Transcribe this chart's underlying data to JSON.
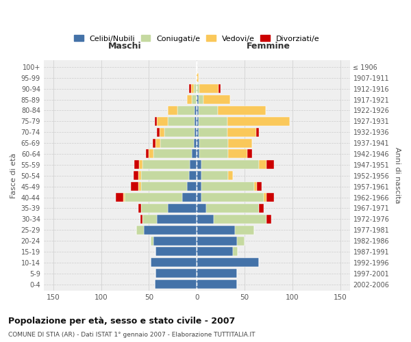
{
  "age_groups": [
    "0-4",
    "5-9",
    "10-14",
    "15-19",
    "20-24",
    "25-29",
    "30-34",
    "35-39",
    "40-44",
    "45-49",
    "50-54",
    "55-59",
    "60-64",
    "65-69",
    "70-74",
    "75-79",
    "80-84",
    "85-89",
    "90-94",
    "95-99",
    "100+"
  ],
  "birth_years": [
    "2002-2006",
    "1997-2001",
    "1992-1996",
    "1987-1991",
    "1982-1986",
    "1977-1981",
    "1972-1976",
    "1967-1971",
    "1962-1966",
    "1957-1961",
    "1952-1956",
    "1947-1951",
    "1942-1946",
    "1937-1941",
    "1932-1936",
    "1927-1931",
    "1922-1926",
    "1917-1921",
    "1912-1916",
    "1907-1911",
    "≤ 1906"
  ],
  "male": {
    "celibi": [
      44,
      43,
      48,
      43,
      45,
      55,
      42,
      30,
      15,
      10,
      8,
      7,
      5,
      3,
      2,
      2,
      2,
      0,
      0,
      0,
      0
    ],
    "coniugati": [
      0,
      0,
      0,
      0,
      3,
      8,
      15,
      28,
      60,
      48,
      50,
      50,
      40,
      35,
      32,
      28,
      18,
      5,
      3,
      0,
      0
    ],
    "vedovi": [
      0,
      0,
      0,
      0,
      0,
      0,
      0,
      0,
      2,
      3,
      3,
      3,
      5,
      5,
      5,
      12,
      10,
      5,
      3,
      0,
      0
    ],
    "divorziati": [
      0,
      0,
      0,
      0,
      0,
      0,
      2,
      3,
      8,
      8,
      5,
      5,
      3,
      3,
      3,
      2,
      0,
      0,
      2,
      0,
      0
    ]
  },
  "female": {
    "nubili": [
      42,
      42,
      65,
      38,
      42,
      40,
      18,
      10,
      5,
      5,
      5,
      5,
      3,
      3,
      2,
      2,
      2,
      2,
      0,
      0,
      0
    ],
    "coniugate": [
      0,
      0,
      0,
      5,
      8,
      20,
      55,
      55,
      65,
      55,
      28,
      60,
      30,
      30,
      30,
      30,
      20,
      5,
      3,
      0,
      0
    ],
    "vedove": [
      0,
      0,
      0,
      0,
      0,
      0,
      0,
      0,
      3,
      3,
      5,
      8,
      20,
      25,
      30,
      65,
      50,
      28,
      20,
      2,
      0
    ],
    "divorziate": [
      0,
      0,
      0,
      0,
      0,
      0,
      5,
      5,
      8,
      5,
      0,
      8,
      5,
      0,
      3,
      0,
      0,
      0,
      2,
      0,
      0
    ]
  },
  "colors": {
    "celibi": "#4472a8",
    "coniugati": "#c5d9a0",
    "vedovi": "#fac85a",
    "divorziati": "#cc0000"
  },
  "title": "Popolazione per età, sesso e stato civile - 2007",
  "subtitle": "COMUNE DI STIA (AR) - Dati ISTAT 1° gennaio 2007 - Elaborazione TUTTITALIA.IT",
  "xlabel_left": "Maschi",
  "xlabel_right": "Femmine",
  "ylabel_left": "Fasce di età",
  "ylabel_right": "Anni di nascita",
  "xlim": 160,
  "bg_color": "#ffffff",
  "plot_bg": "#efefef",
  "grid_color": "#cccccc",
  "legend_labels": [
    "Celibi/Nubili",
    "Coniugati/e",
    "Vedovi/e",
    "Divorziati/e"
  ]
}
